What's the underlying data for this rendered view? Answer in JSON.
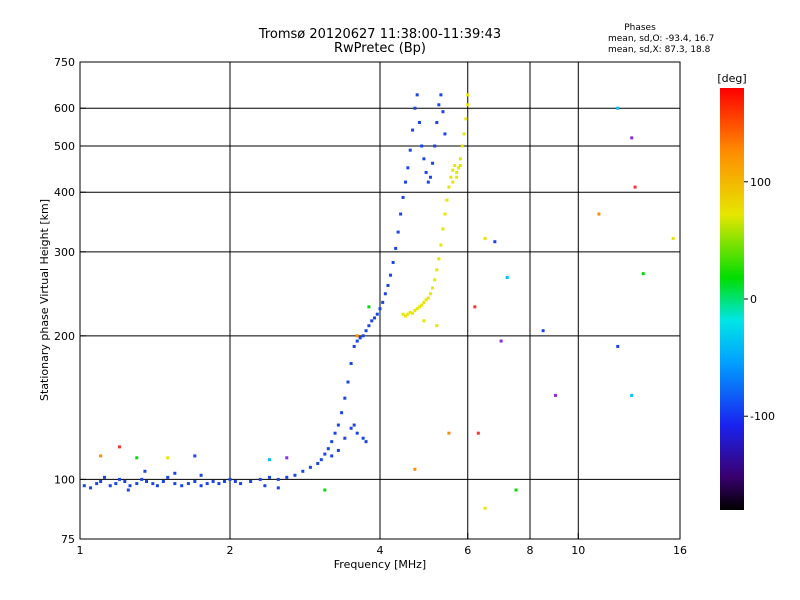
{
  "chart_data": {
    "type": "scatter",
    "title": "Tromsø 20120627 11:38:00-11:39:43",
    "subtitle": "RwPretec (Bp)",
    "xlabel": "Frequency [MHz]",
    "ylabel": "Stationary phase Virtual Height [km]",
    "x_scale": "log",
    "y_scale": "log",
    "xlim": [
      1,
      16
    ],
    "ylim": [
      75,
      750
    ],
    "x_ticks": [
      1,
      2,
      4,
      6,
      8,
      10,
      16
    ],
    "x_tick_labels": [
      "1",
      "2",
      "4",
      "6",
      "8",
      "10",
      "16"
    ],
    "y_ticks": [
      75,
      100,
      200,
      300,
      400,
      500,
      600,
      750
    ],
    "y_tick_labels": [
      "75",
      "100",
      "200",
      "300",
      "400",
      "500",
      "600",
      "750"
    ],
    "grid": true,
    "phases": {
      "header": "Phases",
      "line_o": "mean, sd,O: -93.4, 16.7",
      "line_x": "mean, sd,X:  87.3, 18.8"
    },
    "colorbar": {
      "label": "[deg]",
      "min": -180,
      "max": 180,
      "ticks": [
        100,
        0,
        -100
      ],
      "tick_labels": [
        "100",
        "0",
        "-100"
      ]
    },
    "series": [
      {
        "mode": "O",
        "color": "#1a44e8",
        "points": [
          [
            1.02,
            97
          ],
          [
            1.05,
            96
          ],
          [
            1.08,
            98
          ],
          [
            1.1,
            99
          ],
          [
            1.12,
            101
          ],
          [
            1.15,
            97
          ],
          [
            1.18,
            98
          ],
          [
            1.2,
            100
          ],
          [
            1.23,
            99
          ],
          [
            1.26,
            97
          ],
          [
            1.3,
            98
          ],
          [
            1.33,
            100
          ],
          [
            1.36,
            99
          ],
          [
            1.4,
            98
          ],
          [
            1.43,
            97
          ],
          [
            1.47,
            99
          ],
          [
            1.5,
            101
          ],
          [
            1.55,
            98
          ],
          [
            1.6,
            97
          ],
          [
            1.65,
            98
          ],
          [
            1.7,
            99
          ],
          [
            1.75,
            97
          ],
          [
            1.8,
            98
          ],
          [
            1.85,
            99
          ],
          [
            1.9,
            98
          ],
          [
            1.95,
            99
          ],
          [
            2.0,
            100
          ],
          [
            2.05,
            99
          ],
          [
            2.1,
            98
          ],
          [
            2.2,
            99
          ],
          [
            2.3,
            100
          ],
          [
            2.4,
            101
          ],
          [
            2.5,
            100
          ],
          [
            2.6,
            101
          ],
          [
            2.7,
            102
          ],
          [
            2.8,
            104
          ],
          [
            2.9,
            106
          ],
          [
            3.0,
            108
          ],
          [
            3.05,
            110
          ],
          [
            3.1,
            113
          ],
          [
            3.15,
            116
          ],
          [
            3.2,
            120
          ],
          [
            3.25,
            125
          ],
          [
            3.3,
            130
          ],
          [
            3.35,
            138
          ],
          [
            3.4,
            148
          ],
          [
            3.45,
            160
          ],
          [
            3.5,
            175
          ],
          [
            3.55,
            190
          ],
          [
            3.6,
            195
          ],
          [
            3.65,
            198
          ],
          [
            3.7,
            200
          ],
          [
            3.75,
            205
          ],
          [
            3.8,
            210
          ],
          [
            3.85,
            215
          ],
          [
            3.9,
            218
          ],
          [
            3.95,
            222
          ],
          [
            4.0,
            228
          ],
          [
            4.05,
            235
          ],
          [
            4.1,
            245
          ],
          [
            4.15,
            255
          ],
          [
            4.2,
            268
          ],
          [
            4.25,
            285
          ],
          [
            4.3,
            305
          ],
          [
            4.35,
            330
          ],
          [
            4.4,
            360
          ],
          [
            4.45,
            390
          ],
          [
            4.5,
            420
          ],
          [
            4.55,
            450
          ],
          [
            4.6,
            490
          ],
          [
            4.65,
            540
          ],
          [
            4.7,
            600
          ],
          [
            4.75,
            640
          ],
          [
            4.8,
            560
          ],
          [
            4.85,
            500
          ],
          [
            4.9,
            470
          ],
          [
            4.95,
            440
          ],
          [
            5.0,
            420
          ],
          [
            5.05,
            430
          ],
          [
            5.1,
            460
          ],
          [
            5.15,
            500
          ],
          [
            5.2,
            560
          ],
          [
            5.25,
            610
          ],
          [
            5.3,
            640
          ],
          [
            5.35,
            590
          ],
          [
            5.4,
            530
          ],
          [
            3.55,
            130
          ],
          [
            3.6,
            125
          ],
          [
            3.7,
            122
          ],
          [
            3.75,
            120
          ],
          [
            3.5,
            128
          ],
          [
            3.4,
            122
          ],
          [
            3.3,
            115
          ],
          [
            3.2,
            112
          ],
          [
            1.35,
            104
          ],
          [
            1.55,
            103
          ],
          [
            1.75,
            102
          ],
          [
            2.35,
            97
          ],
          [
            2.5,
            96
          ],
          [
            1.25,
            95
          ]
        ]
      },
      {
        "mode": "X",
        "color": "#e6e600",
        "points": [
          [
            4.45,
            222
          ],
          [
            4.5,
            220
          ],
          [
            4.55,
            222
          ],
          [
            4.6,
            224
          ],
          [
            4.65,
            223
          ],
          [
            4.7,
            226
          ],
          [
            4.75,
            228
          ],
          [
            4.8,
            230
          ],
          [
            4.85,
            232
          ],
          [
            4.9,
            235
          ],
          [
            4.95,
            238
          ],
          [
            5.0,
            240
          ],
          [
            5.05,
            245
          ],
          [
            5.1,
            252
          ],
          [
            5.15,
            262
          ],
          [
            5.2,
            275
          ],
          [
            5.25,
            290
          ],
          [
            5.3,
            310
          ],
          [
            5.35,
            335
          ],
          [
            5.4,
            360
          ],
          [
            5.45,
            385
          ],
          [
            5.5,
            410
          ],
          [
            5.55,
            430
          ],
          [
            5.6,
            445
          ],
          [
            5.65,
            455
          ],
          [
            5.7,
            440
          ],
          [
            5.75,
            450
          ],
          [
            5.8,
            470
          ],
          [
            5.85,
            500
          ],
          [
            5.9,
            530
          ],
          [
            5.95,
            570
          ],
          [
            6.0,
            610
          ],
          [
            6.0,
            640
          ],
          [
            5.6,
            420
          ],
          [
            5.7,
            430
          ],
          [
            5.8,
            455
          ],
          [
            4.9,
            215
          ],
          [
            5.2,
            210
          ]
        ]
      },
      {
        "mode": "scatter",
        "color": "mixed",
        "points": [
          [
            1.1,
            112
          ],
          [
            1.3,
            111
          ],
          [
            1.5,
            111
          ],
          [
            1.7,
            112
          ],
          [
            2.4,
            110
          ],
          [
            2.6,
            111
          ],
          [
            1.2,
            117
          ],
          [
            3.6,
            200
          ],
          [
            3.8,
            230
          ],
          [
            6.5,
            320
          ],
          [
            6.8,
            315
          ],
          [
            7.2,
            265
          ],
          [
            7.0,
            195
          ],
          [
            6.3,
            125
          ],
          [
            5.5,
            125
          ],
          [
            7.5,
            95
          ],
          [
            6.5,
            87
          ],
          [
            8.5,
            205
          ],
          [
            12.0,
            600
          ],
          [
            12.8,
            520
          ],
          [
            13.0,
            410
          ],
          [
            11.0,
            360
          ],
          [
            13.5,
            270
          ],
          [
            15.5,
            320
          ],
          [
            12.0,
            190
          ],
          [
            12.8,
            150
          ],
          [
            9.0,
            150
          ],
          [
            6.2,
            230
          ],
          [
            4.7,
            105
          ],
          [
            3.1,
            95
          ]
        ]
      }
    ]
  }
}
